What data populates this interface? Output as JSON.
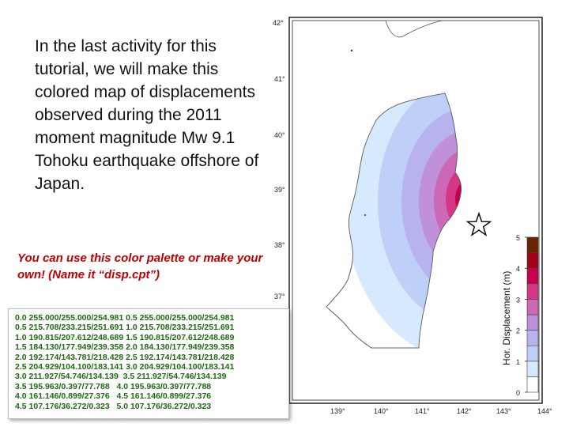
{
  "intro_text": "In the last activity for this tutorial, we will make this colored map of displacements observed during the 2011 moment magnitude Mw 9.1 Tohoku earthquake offshore of Japan.",
  "note_text": "You can use this color palette or make your own! (Name it “disp.cpt”)",
  "palette_lines": [
    "0.0 255.000/255.000/254.981 0.5 255.000/255.000/254.981",
    "0.5 215.708/233.215/251.691 1.0 215.708/233.215/251.691",
    "1.0 190.815/207.612/248.689 1.5 190.815/207.612/248.689",
    "1.5 184.130/177.949/239.358 2.0 184.130/177.949/239.358",
    "2.0 192.174/143.781/218.428 2.5 192.174/143.781/218.428",
    "2.5 204.929/104.100/183.141 3.0 204.929/104.100/183.141",
    "3.0 211.927/54.746/134.139  3.5 211.927/54.746/134.139",
    "3.5 195.963/0.397/77.788   4.0 195.963/0.397/77.788",
    "4.0 161.146/0.899/27.376   4.5 161.146/0.899/27.376",
    "4.5 107.176/36.272/0.323   5.0 107.176/36.272/0.323"
  ],
  "map": {
    "lat_labels": [
      "42°",
      "41°",
      "40°",
      "39°",
      "38°",
      "37°"
    ],
    "lon_labels": [
      "139°",
      "140°",
      "141°",
      "142°",
      "143°",
      "144°"
    ],
    "scale_ticks": [
      "0",
      "1",
      "2",
      "3",
      "4",
      "5"
    ],
    "scale_label": "Hor. Displacement (m)",
    "scale_colors": [
      "#fffffe",
      "#d7e9fc",
      "#bed0f8",
      "#b8b2ef",
      "#c090da",
      "#cd68b7",
      "#d43786",
      "#c4004e",
      "#a1011b",
      "#6b2400"
    ],
    "land_color": "#ffffff",
    "epicenter_icon": "star-icon"
  }
}
